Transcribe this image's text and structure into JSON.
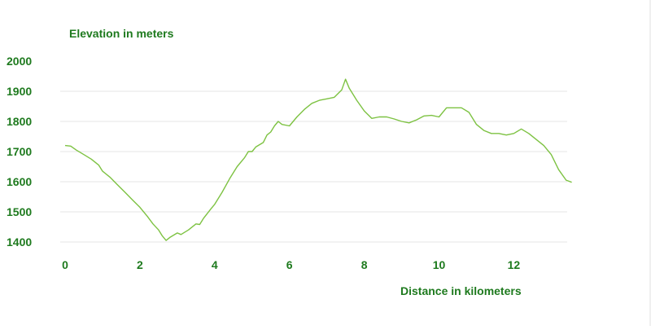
{
  "chart_data": {
    "type": "line",
    "ylabel": "Elevation in meters",
    "xlabel": "Distance in kilometers",
    "xlim": [
      0,
      14
    ],
    "ylim": [
      1400,
      2000
    ],
    "x_ticks": [
      0,
      2,
      4,
      6,
      8,
      10,
      12
    ],
    "y_ticks": [
      1400,
      1500,
      1600,
      1700,
      1800,
      1900,
      2000
    ],
    "grid": "horizontal",
    "colors": {
      "line": "#7dc242",
      "text": "#1e7a1e",
      "grid": "#e4e4e4"
    },
    "series": [
      {
        "x": [
          0,
          0.15,
          0.3,
          0.5,
          0.7,
          0.9,
          1.0,
          1.2,
          1.4,
          1.6,
          1.8,
          2.0,
          2.2,
          2.35,
          2.5,
          2.6,
          2.7,
          2.8,
          3.0,
          3.1,
          3.3,
          3.5,
          3.6,
          3.7,
          3.9,
          4.0,
          4.2,
          4.4,
          4.6,
          4.8,
          4.9,
          5.0,
          5.1,
          5.3,
          5.4,
          5.5,
          5.6,
          5.7,
          5.8,
          6.0,
          6.2,
          6.4,
          6.6,
          6.8,
          7.0,
          7.2,
          7.4,
          7.5,
          7.6,
          7.8,
          8.0,
          8.2,
          8.4,
          8.6,
          8.8,
          9.0,
          9.2,
          9.4,
          9.6,
          9.8,
          10.0,
          10.2,
          10.4,
          10.6,
          10.8,
          11.0,
          11.2,
          11.4,
          11.6,
          11.8,
          12.0,
          12.2,
          12.4,
          12.6,
          12.8,
          13.0,
          13.2,
          13.4,
          13.55
        ],
        "y": [
          1720,
          1718,
          1705,
          1690,
          1675,
          1655,
          1635,
          1615,
          1590,
          1565,
          1540,
          1515,
          1485,
          1460,
          1440,
          1420,
          1405,
          1415,
          1430,
          1425,
          1440,
          1460,
          1458,
          1478,
          1510,
          1525,
          1565,
          1610,
          1650,
          1680,
          1700,
          1700,
          1715,
          1730,
          1755,
          1765,
          1785,
          1800,
          1790,
          1785,
          1815,
          1840,
          1860,
          1870,
          1875,
          1880,
          1905,
          1940,
          1910,
          1870,
          1835,
          1810,
          1815,
          1815,
          1808,
          1800,
          1795,
          1805,
          1818,
          1820,
          1815,
          1845,
          1845,
          1845,
          1830,
          1790,
          1770,
          1760,
          1760,
          1755,
          1760,
          1775,
          1760,
          1740,
          1720,
          1690,
          1640,
          1605,
          1598
        ]
      }
    ]
  }
}
